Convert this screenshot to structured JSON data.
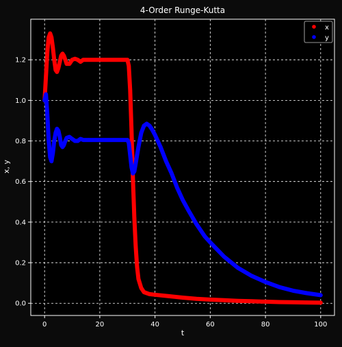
{
  "colors": {
    "figure_bg": "#0b0b0b",
    "axes_bg": "#000000",
    "grid": "#ffffff",
    "text": "#ffffff",
    "x_series": "#ff0000",
    "y_series": "#0000ff"
  },
  "chart_data": {
    "type": "scatter",
    "title": "4-Order Runge-Kutta",
    "xlabel": "t",
    "ylabel": "x, y",
    "xlim": [
      -5,
      105
    ],
    "ylim": [
      -0.06,
      1.4
    ],
    "xticks": [
      0,
      20,
      40,
      60,
      80,
      100
    ],
    "xtick_labels": [
      "0",
      "20",
      "40",
      "60",
      "80",
      "100"
    ],
    "yticks": [
      0.0,
      0.2,
      0.4,
      0.6,
      0.8,
      1.0,
      1.2
    ],
    "ytick_labels": [
      "0.0",
      "0.2",
      "0.4",
      "0.6",
      "0.8",
      "1.0",
      "1.2"
    ],
    "grid": true,
    "grid_style": "dashed",
    "legend_position": "top-right",
    "series": [
      {
        "name": "x",
        "color": "#ff0000",
        "points": [
          [
            0,
            1.0
          ],
          [
            0.5,
            1.12
          ],
          [
            1,
            1.24
          ],
          [
            1.5,
            1.31
          ],
          [
            2,
            1.33
          ],
          [
            2.5,
            1.31
          ],
          [
            3,
            1.26
          ],
          [
            3.5,
            1.2
          ],
          [
            4,
            1.15
          ],
          [
            4.5,
            1.14
          ],
          [
            5,
            1.16
          ],
          [
            5.5,
            1.19
          ],
          [
            6,
            1.22
          ],
          [
            6.5,
            1.23
          ],
          [
            7,
            1.22
          ],
          [
            7.5,
            1.2
          ],
          [
            8,
            1.18
          ],
          [
            9,
            1.18
          ],
          [
            10,
            1.2
          ],
          [
            11,
            1.205
          ],
          [
            12,
            1.2
          ],
          [
            13,
            1.19
          ],
          [
            14,
            1.2
          ],
          [
            16,
            1.2
          ],
          [
            20,
            1.2
          ],
          [
            25,
            1.2
          ],
          [
            28,
            1.2
          ],
          [
            30,
            1.2
          ],
          [
            30.5,
            1.17
          ],
          [
            31,
            1.05
          ],
          [
            31.5,
            0.85
          ],
          [
            32,
            0.62
          ],
          [
            32.5,
            0.42
          ],
          [
            33,
            0.28
          ],
          [
            33.5,
            0.18
          ],
          [
            34,
            0.12
          ],
          [
            35,
            0.075
          ],
          [
            36,
            0.055
          ],
          [
            38,
            0.045
          ],
          [
            40,
            0.042
          ],
          [
            45,
            0.035
          ],
          [
            50,
            0.028
          ],
          [
            55,
            0.022
          ],
          [
            60,
            0.018
          ],
          [
            65,
            0.015
          ],
          [
            70,
            0.012
          ],
          [
            75,
            0.01
          ],
          [
            80,
            0.008
          ],
          [
            85,
            0.006
          ],
          [
            90,
            0.005
          ],
          [
            95,
            0.004
          ],
          [
            100,
            0.003
          ]
        ]
      },
      {
        "name": "y",
        "color": "#0000ff",
        "points": [
          [
            0,
            1.0
          ],
          [
            0.5,
            1.03
          ],
          [
            1,
            0.93
          ],
          [
            1.5,
            0.8
          ],
          [
            2,
            0.72
          ],
          [
            2.5,
            0.7
          ],
          [
            3,
            0.74
          ],
          [
            3.5,
            0.8
          ],
          [
            4,
            0.84
          ],
          [
            4.5,
            0.86
          ],
          [
            5,
            0.85
          ],
          [
            5.5,
            0.82
          ],
          [
            6,
            0.78
          ],
          [
            6.5,
            0.77
          ],
          [
            7,
            0.78
          ],
          [
            7.5,
            0.8
          ],
          [
            8,
            0.815
          ],
          [
            9,
            0.82
          ],
          [
            10,
            0.81
          ],
          [
            11,
            0.8
          ],
          [
            12,
            0.8
          ],
          [
            13,
            0.81
          ],
          [
            14,
            0.805
          ],
          [
            16,
            0.805
          ],
          [
            20,
            0.805
          ],
          [
            25,
            0.805
          ],
          [
            30,
            0.805
          ],
          [
            30.5,
            0.79
          ],
          [
            31,
            0.73
          ],
          [
            31.5,
            0.67
          ],
          [
            32,
            0.64
          ],
          [
            32.5,
            0.65
          ],
          [
            33,
            0.69
          ],
          [
            34,
            0.77
          ],
          [
            35,
            0.84
          ],
          [
            36,
            0.875
          ],
          [
            37,
            0.885
          ],
          [
            38,
            0.875
          ],
          [
            39,
            0.855
          ],
          [
            40,
            0.83
          ],
          [
            42,
            0.77
          ],
          [
            44,
            0.7
          ],
          [
            46,
            0.64
          ],
          [
            48,
            0.57
          ],
          [
            50,
            0.51
          ],
          [
            52,
            0.46
          ],
          [
            55,
            0.39
          ],
          [
            58,
            0.33
          ],
          [
            60,
            0.3
          ],
          [
            65,
            0.23
          ],
          [
            70,
            0.175
          ],
          [
            75,
            0.135
          ],
          [
            80,
            0.105
          ],
          [
            85,
            0.08
          ],
          [
            90,
            0.062
          ],
          [
            95,
            0.05
          ],
          [
            100,
            0.04
          ]
        ]
      }
    ]
  }
}
